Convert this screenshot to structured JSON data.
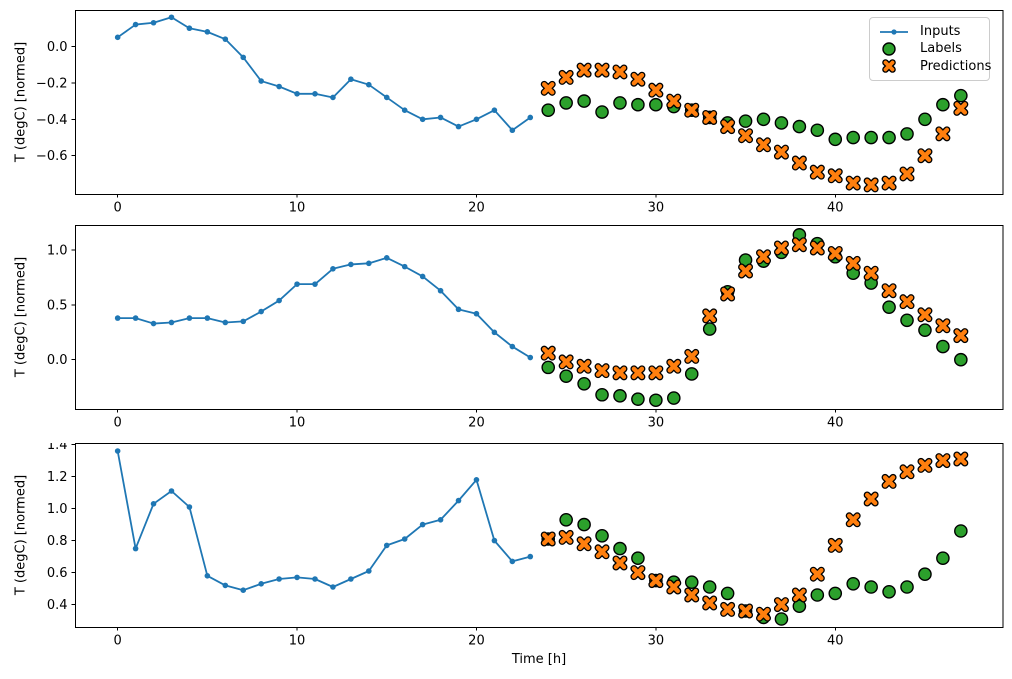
{
  "figure": {
    "background": "#ffffff",
    "xlabel": "Time [h]",
    "colors": {
      "inputs": "#1f77b4",
      "labels": "#2ca02c",
      "predictions": "#ff7f0e",
      "marker_edge": "#000000",
      "axis": "#000000",
      "text": "#000000",
      "legend_border": "#cccccc"
    },
    "legend": {
      "position": "upper right of top subplot",
      "items": [
        {
          "label": "Inputs"
        },
        {
          "label": "Labels"
        },
        {
          "label": "Predictions"
        }
      ]
    }
  },
  "chart_data": [
    {
      "type": "line",
      "title": "",
      "ylabel": "T (degC) [normed]",
      "xlabel": "",
      "grid": false,
      "xlim": [
        -2.35,
        49.35
      ],
      "ylim": [
        -0.81,
        0.2
      ],
      "xticks": [
        {
          "v": 0,
          "label": "0"
        },
        {
          "v": 10,
          "label": "10"
        },
        {
          "v": 20,
          "label": "20"
        },
        {
          "v": 30,
          "label": "30"
        },
        {
          "v": 40,
          "label": "40"
        }
      ],
      "yticks": [
        {
          "v": 0.0,
          "label": "0.0"
        },
        {
          "v": -0.2,
          "label": "−0.2"
        },
        {
          "v": -0.4,
          "label": "−0.4"
        },
        {
          "v": -0.6,
          "label": "−0.6"
        }
      ],
      "series": [
        {
          "name": "Inputs",
          "marker": "dot-line",
          "x": [
            0,
            1,
            2,
            3,
            4,
            5,
            6,
            7,
            8,
            9,
            10,
            11,
            12,
            13,
            14,
            15,
            16,
            17,
            18,
            19,
            20,
            21,
            22,
            23
          ],
          "values": [
            0.05,
            0.12,
            0.13,
            0.16,
            0.1,
            0.08,
            0.04,
            -0.06,
            -0.19,
            -0.22,
            -0.26,
            -0.26,
            -0.28,
            -0.18,
            -0.21,
            -0.28,
            -0.35,
            -0.4,
            -0.39,
            -0.44,
            -0.4,
            -0.35,
            -0.46,
            -0.39
          ]
        },
        {
          "name": "Labels",
          "marker": "circle",
          "x": [
            24,
            25,
            26,
            27,
            28,
            29,
            30,
            31,
            32,
            33,
            34,
            35,
            36,
            37,
            38,
            39,
            40,
            41,
            42,
            43,
            44,
            45,
            46,
            47
          ],
          "values": [
            -0.35,
            -0.31,
            -0.3,
            -0.36,
            -0.31,
            -0.32,
            -0.32,
            -0.33,
            -0.35,
            -0.39,
            -0.42,
            -0.41,
            -0.4,
            -0.42,
            -0.44,
            -0.46,
            -0.51,
            -0.5,
            -0.5,
            -0.5,
            -0.48,
            -0.4,
            -0.32,
            -0.27
          ]
        },
        {
          "name": "Predictions",
          "marker": "X",
          "x": [
            24,
            25,
            26,
            27,
            28,
            29,
            30,
            31,
            32,
            33,
            34,
            35,
            36,
            37,
            38,
            39,
            40,
            41,
            42,
            43,
            44,
            45,
            46,
            47
          ],
          "values": [
            -0.23,
            -0.17,
            -0.13,
            -0.13,
            -0.14,
            -0.18,
            -0.24,
            -0.3,
            -0.35,
            -0.39,
            -0.44,
            -0.49,
            -0.54,
            -0.58,
            -0.64,
            -0.69,
            -0.71,
            -0.75,
            -0.76,
            -0.75,
            -0.7,
            -0.6,
            -0.48,
            -0.34
          ]
        }
      ]
    },
    {
      "type": "line",
      "title": "",
      "ylabel": "T (degC) [normed]",
      "xlabel": "",
      "grid": false,
      "xlim": [
        -2.35,
        49.35
      ],
      "ylim": [
        -0.45,
        1.23
      ],
      "xticks": [
        {
          "v": 0,
          "label": "0"
        },
        {
          "v": 10,
          "label": "10"
        },
        {
          "v": 20,
          "label": "20"
        },
        {
          "v": 30,
          "label": "30"
        },
        {
          "v": 40,
          "label": "40"
        }
      ],
      "yticks": [
        {
          "v": 0.0,
          "label": "0.0"
        },
        {
          "v": 0.5,
          "label": "0.5"
        },
        {
          "v": 1.0,
          "label": "1.0"
        }
      ],
      "series": [
        {
          "name": "Inputs",
          "marker": "dot-line",
          "x": [
            0,
            1,
            2,
            3,
            4,
            5,
            6,
            7,
            8,
            9,
            10,
            11,
            12,
            13,
            14,
            15,
            16,
            17,
            18,
            19,
            20,
            21,
            22,
            23
          ],
          "values": [
            0.38,
            0.38,
            0.33,
            0.34,
            0.38,
            0.38,
            0.34,
            0.35,
            0.44,
            0.54,
            0.69,
            0.69,
            0.83,
            0.87,
            0.88,
            0.93,
            0.85,
            0.76,
            0.63,
            0.46,
            0.42,
            0.25,
            0.12,
            0.02
          ]
        },
        {
          "name": "Labels",
          "marker": "circle",
          "x": [
            24,
            25,
            26,
            27,
            28,
            29,
            30,
            31,
            32,
            33,
            34,
            35,
            36,
            37,
            38,
            39,
            40,
            41,
            42,
            43,
            44,
            45,
            46,
            47
          ],
          "values": [
            -0.07,
            -0.15,
            -0.22,
            -0.32,
            -0.33,
            -0.36,
            -0.37,
            -0.35,
            -0.13,
            0.28,
            0.62,
            0.91,
            0.9,
            0.98,
            1.14,
            1.06,
            0.94,
            0.79,
            0.7,
            0.48,
            0.36,
            0.27,
            0.12,
            0.0
          ]
        },
        {
          "name": "Predictions",
          "marker": "X",
          "x": [
            24,
            25,
            26,
            27,
            28,
            29,
            30,
            31,
            32,
            33,
            34,
            35,
            36,
            37,
            38,
            39,
            40,
            41,
            42,
            43,
            44,
            45,
            46,
            47
          ],
          "values": [
            0.06,
            -0.02,
            -0.06,
            -0.1,
            -0.12,
            -0.12,
            -0.12,
            -0.06,
            0.03,
            0.4,
            0.6,
            0.81,
            0.94,
            1.02,
            1.05,
            1.02,
            0.97,
            0.88,
            0.79,
            0.63,
            0.53,
            0.41,
            0.31,
            0.22
          ]
        }
      ]
    },
    {
      "type": "line",
      "title": "",
      "ylabel": "T (degC) [normed]",
      "xlabel": "Time [h]",
      "grid": false,
      "xlim": [
        -2.35,
        49.35
      ],
      "ylim": [
        0.26,
        1.41
      ],
      "xticks": [
        {
          "v": 0,
          "label": "0"
        },
        {
          "v": 10,
          "label": "10"
        },
        {
          "v": 20,
          "label": "20"
        },
        {
          "v": 30,
          "label": "30"
        },
        {
          "v": 40,
          "label": "40"
        }
      ],
      "yticks": [
        {
          "v": 0.4,
          "label": "0.4"
        },
        {
          "v": 0.6,
          "label": "0.6"
        },
        {
          "v": 0.8,
          "label": "0.8"
        },
        {
          "v": 1.0,
          "label": "1.0"
        },
        {
          "v": 1.2,
          "label": "1.2"
        },
        {
          "v": 1.4,
          "label": "1.4"
        }
      ],
      "series": [
        {
          "name": "Inputs",
          "marker": "dot-line",
          "x": [
            0,
            1,
            2,
            3,
            4,
            5,
            6,
            7,
            8,
            9,
            10,
            11,
            12,
            13,
            14,
            15,
            16,
            17,
            18,
            19,
            20,
            21,
            22,
            23
          ],
          "values": [
            1.36,
            0.75,
            1.03,
            1.11,
            1.01,
            0.58,
            0.52,
            0.49,
            0.53,
            0.56,
            0.57,
            0.56,
            0.51,
            0.56,
            0.61,
            0.77,
            0.81,
            0.9,
            0.93,
            1.05,
            1.18,
            0.8,
            0.67,
            0.7
          ]
        },
        {
          "name": "Labels",
          "marker": "circle",
          "x": [
            24,
            25,
            26,
            27,
            28,
            29,
            30,
            31,
            32,
            33,
            34,
            35,
            36,
            37,
            38,
            39,
            40,
            41,
            42,
            43,
            44,
            45,
            46,
            47
          ],
          "values": [
            0.81,
            0.93,
            0.9,
            0.83,
            0.75,
            0.69,
            0.55,
            0.54,
            0.54,
            0.51,
            0.47,
            0.36,
            0.32,
            0.31,
            0.39,
            0.46,
            0.47,
            0.53,
            0.51,
            0.48,
            0.51,
            0.59,
            0.69,
            0.86
          ]
        },
        {
          "name": "Predictions",
          "marker": "X",
          "x": [
            24,
            25,
            26,
            27,
            28,
            29,
            30,
            31,
            32,
            33,
            34,
            35,
            36,
            37,
            38,
            39,
            40,
            41,
            42,
            43,
            44,
            45,
            46,
            47
          ],
          "values": [
            0.81,
            0.82,
            0.78,
            0.73,
            0.66,
            0.6,
            0.55,
            0.51,
            0.46,
            0.41,
            0.37,
            0.36,
            0.34,
            0.4,
            0.46,
            0.59,
            0.77,
            0.93,
            1.06,
            1.17,
            1.23,
            1.27,
            1.3,
            1.31
          ]
        }
      ]
    }
  ]
}
